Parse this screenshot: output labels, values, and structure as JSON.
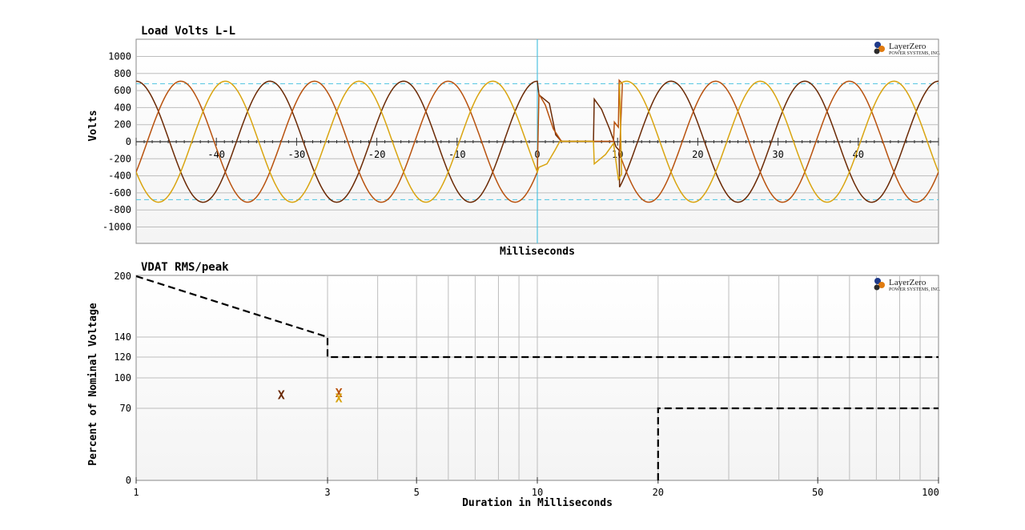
{
  "logo": {
    "main": "LayerZero",
    "sub": "POWER SYSTEMS, INC."
  },
  "chart_data": [
    {
      "type": "line",
      "title": "Load Volts L-L",
      "xlabel": "Milliseconds",
      "ylabel": "Volts",
      "xlim": [
        -50,
        50
      ],
      "ylim": [
        -1200,
        1200
      ],
      "x_ticks": [
        -40,
        -30,
        -20,
        -10,
        0,
        10,
        20,
        30,
        40
      ],
      "x_tick_labels": [
        "-40",
        "-30",
        "-20",
        "-10",
        "0",
        "10",
        "20",
        "30",
        "40"
      ],
      "y_ticks": [
        1000,
        800,
        600,
        400,
        200,
        0,
        -200,
        -400,
        -600,
        -800,
        -1000
      ],
      "y_tick_labels": [
        "1000",
        "800",
        "600",
        "400",
        "200",
        "0",
        "-200",
        "-400",
        "-600",
        "-800",
        "-1000"
      ],
      "grid": true,
      "reference_lines_y": [
        680,
        -680
      ],
      "event_marker_x": 0,
      "waveform": {
        "amplitude": 710,
        "frequency_hz": 60,
        "outage_start_ms": 0,
        "outage_end_ms": 10
      },
      "series": [
        {
          "color": "#6b2a05",
          "phase_deg": 0,
          "transfer_points": [
            [
              0.2,
              550
            ],
            [
              1.5,
              450
            ],
            [
              2.3,
              80
            ],
            [
              3,
              5
            ],
            [
              7,
              5
            ],
            [
              7.1,
              500
            ],
            [
              8,
              380
            ],
            [
              9,
              150
            ],
            [
              9.8,
              -60
            ],
            [
              10.2,
              -100
            ]
          ]
        },
        {
          "color": "#b8520e",
          "phase_deg": -120,
          "transfer_points": [
            [
              0.2,
              560
            ],
            [
              1,
              430
            ],
            [
              2,
              150
            ],
            [
              3,
              5
            ],
            [
              7,
              5
            ],
            [
              9.5,
              5
            ],
            [
              9.6,
              230
            ],
            [
              10.1,
              170
            ],
            [
              10.2,
              720
            ],
            [
              10.6,
              680
            ]
          ]
        },
        {
          "color": "#d9a40f",
          "phase_deg": 120,
          "transfer_points": [
            [
              0.2,
              -300
            ],
            [
              1.2,
              -260
            ],
            [
              2.2,
              -100
            ],
            [
              2.8,
              5
            ],
            [
              7,
              5
            ],
            [
              7.1,
              -260
            ],
            [
              8.5,
              -150
            ],
            [
              9.5,
              -20
            ],
            [
              10.1,
              -440
            ],
            [
              10.5,
              -380
            ]
          ]
        }
      ]
    },
    {
      "type": "scatter",
      "title": "VDAT RMS/peak",
      "xlabel": "Duration in Milliseconds",
      "ylabel": "Percent of Nominal Voltage",
      "x_scale": "log",
      "xlim": [
        1,
        100
      ],
      "x_ticks": [
        1,
        3,
        5,
        10,
        20,
        50,
        100
      ],
      "x_tick_labels": [
        "1",
        "3",
        "5",
        "10",
        "20",
        "50",
        "100"
      ],
      "x_minor_gridlines": [
        2,
        3,
        4,
        5,
        6,
        7,
        8,
        9,
        10,
        20,
        30,
        40,
        50,
        60,
        70,
        80,
        90
      ],
      "ylim": [
        0,
        200
      ],
      "y_ticks": [
        200,
        140,
        120,
        100,
        70,
        0
      ],
      "y_tick_labels": [
        "200",
        "140",
        "120",
        "100",
        "70",
        "0"
      ],
      "grid": true,
      "limit_curves": [
        {
          "style": "dashed",
          "points": [
            [
              1,
              200
            ],
            [
              3,
              140
            ],
            [
              3,
              120
            ],
            [
              100,
              120
            ]
          ]
        },
        {
          "style": "dashed",
          "points": [
            [
              20,
              0
            ],
            [
              20,
              70
            ],
            [
              100,
              70
            ]
          ]
        }
      ],
      "points": [
        {
          "x": 2.3,
          "y": 83,
          "label": "X",
          "color": "#6b2a05"
        },
        {
          "x": 3.2,
          "y": 85,
          "label": "X",
          "color": "#b8520e"
        },
        {
          "x": 3.2,
          "y": 80,
          "label": "X",
          "color": "#d9a40f"
        }
      ]
    }
  ]
}
